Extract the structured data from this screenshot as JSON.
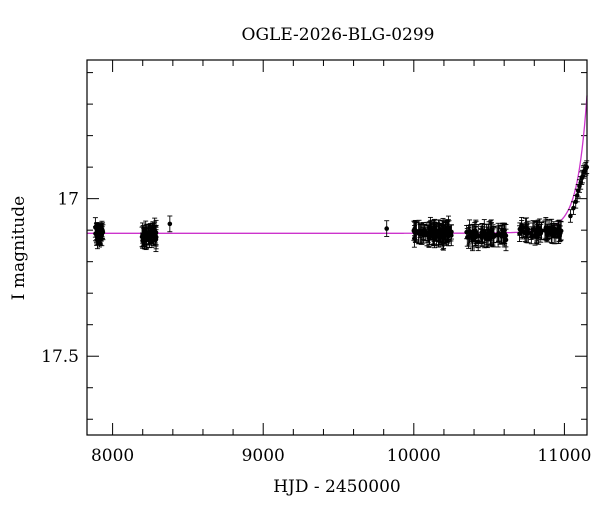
{
  "chart_data": {
    "type": "scatter",
    "title": "OGLE-2026-BLG-0299",
    "xlabel": "HJD - 2450000",
    "ylabel": "I magnitude",
    "xlim": [
      7830,
      11150
    ],
    "ylim": [
      17.75,
      16.56
    ],
    "y_axis_inverted": true,
    "grid": false,
    "x_ticks": [
      8000,
      9000,
      10000,
      11000
    ],
    "x_tick_labels": [
      "8000",
      "9000",
      "10000",
      "11000"
    ],
    "y_ticks": [
      17.0,
      17.5
    ],
    "y_tick_labels": [
      "17",
      "17.5"
    ],
    "model_color": "#cc33cc",
    "point_color": "#000000",
    "model": {
      "baseline_mag": 17.11,
      "peak_time": 11230,
      "tE": 110,
      "u0": 0.4,
      "x_start": 7830,
      "x_end": 11150
    },
    "observation_seasons": [
      {
        "x_range": [
          7880,
          7940
        ],
        "mag": 17.11,
        "n": 35,
        "err": 0.025
      },
      {
        "x_range": [
          8195,
          8290
        ],
        "mag": 17.115,
        "n": 45,
        "err": 0.028
      },
      {
        "x_range": [
          10150,
          10250
        ],
        "mag": 17.11,
        "n": 40,
        "err": 0.028
      },
      {
        "x_range": [
          10000,
          10150
        ],
        "mag": 17.11,
        "n": 45,
        "err": 0.028
      },
      {
        "x_range": [
          10350,
          10620
        ],
        "mag": 17.115,
        "n": 60,
        "err": 0.028
      },
      {
        "x_range": [
          10700,
          10980
        ],
        "mag": 17.105,
        "n": 60,
        "err": 0.025
      }
    ],
    "isolated_points": [
      {
        "x": 8380,
        "y": 17.08,
        "err": 0.025
      },
      {
        "x": 9820,
        "y": 17.095,
        "err": 0.025
      },
      {
        "x": 10590,
        "y": 17.1,
        "err": 0.02
      }
    ],
    "rising_points": [
      {
        "x": 11040,
        "y": 17.055,
        "err": 0.02
      },
      {
        "x": 11060,
        "y": 17.03,
        "err": 0.02
      },
      {
        "x": 11075,
        "y": 17.01,
        "err": 0.02
      },
      {
        "x": 11085,
        "y": 16.99,
        "err": 0.02
      },
      {
        "x": 11092,
        "y": 16.975,
        "err": 0.02
      },
      {
        "x": 11100,
        "y": 16.96,
        "err": 0.02
      },
      {
        "x": 11108,
        "y": 16.95,
        "err": 0.02
      },
      {
        "x": 11115,
        "y": 16.935,
        "err": 0.02
      },
      {
        "x": 11120,
        "y": 16.93,
        "err": 0.02
      },
      {
        "x": 11128,
        "y": 16.915,
        "err": 0.02
      },
      {
        "x": 11135,
        "y": 16.91,
        "err": 0.02
      },
      {
        "x": 11142,
        "y": 16.905,
        "err": 0.02
      },
      {
        "x": 11148,
        "y": 16.9,
        "err": 0.02
      }
    ]
  }
}
